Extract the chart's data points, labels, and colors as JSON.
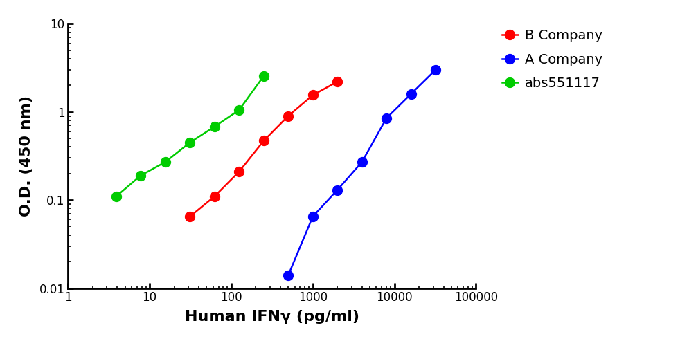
{
  "xlabel": "Human IFNγ (pg/ml)",
  "ylabel": "O.D. (450 nm)",
  "xlim": [
    1,
    100000
  ],
  "ylim": [
    0.01,
    10
  ],
  "series": [
    {
      "label": "B Company",
      "color": "#ff0000",
      "x": [
        31.25,
        62.5,
        125,
        250,
        500,
        1000,
        2000
      ],
      "y": [
        0.065,
        0.11,
        0.21,
        0.47,
        0.9,
        1.55,
        2.2
      ]
    },
    {
      "label": "A Company",
      "color": "#0000ff",
      "x": [
        500,
        1000,
        2000,
        4000,
        8000,
        16000,
        32000
      ],
      "y": [
        0.014,
        0.065,
        0.13,
        0.27,
        0.85,
        1.6,
        3.0
      ]
    },
    {
      "label": "abs551117",
      "color": "#00cc00",
      "x": [
        3.9,
        7.8,
        15.6,
        31.25,
        62.5,
        125,
        250
      ],
      "y": [
        0.11,
        0.19,
        0.27,
        0.45,
        0.68,
        1.05,
        2.55
      ]
    }
  ],
  "legend_fontsize": 14,
  "axis_label_fontsize": 16,
  "tick_fontsize": 12,
  "marker_size": 10,
  "line_width": 1.8,
  "background_color": "#ffffff"
}
